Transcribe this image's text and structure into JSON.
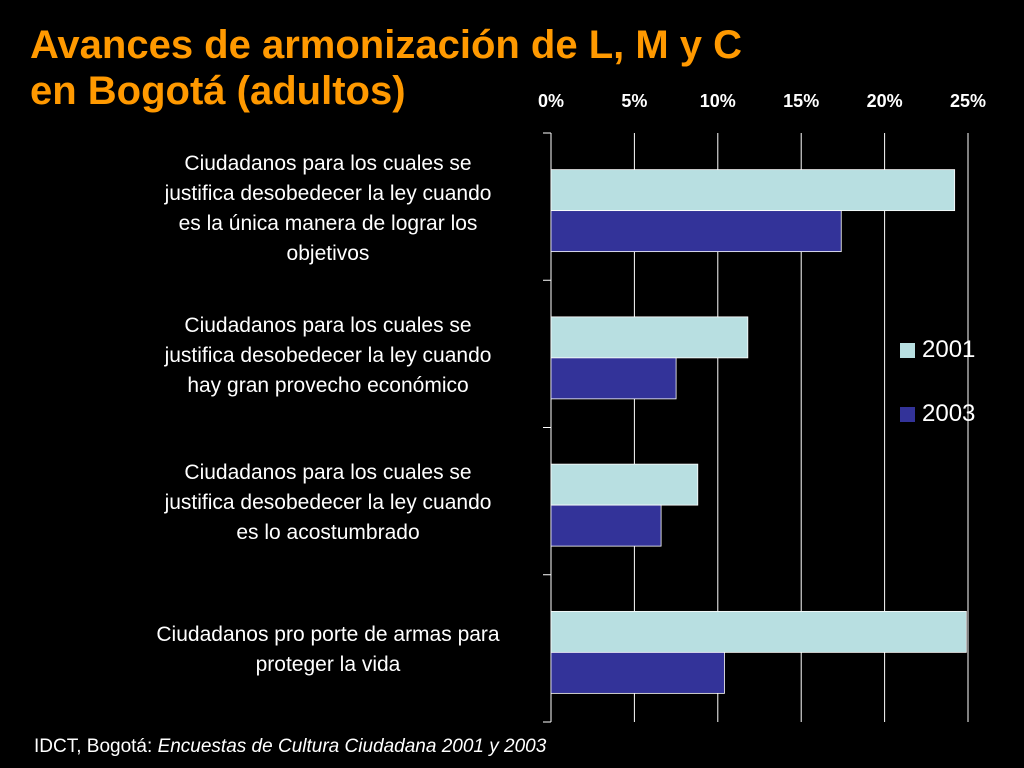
{
  "title": {
    "line1": "Avances de armonización de L, M y C",
    "line2": "en Bogotá (adultos)"
  },
  "colors": {
    "title": "#FF9900",
    "series_2001": "#B8DFE1",
    "series_2003": "#333399",
    "background": "#000000",
    "text": "#FFFFFF"
  },
  "source": {
    "prefix": "IDCT, Bogotá: ",
    "italic": "Encuestas de Cultura Ciudadana 2001 y 2003"
  },
  "chart_data": {
    "type": "bar",
    "orientation": "horizontal",
    "categories": [
      [
        "Ciudadanos para los cuales se",
        "justifica desobedecer la ley cuando",
        "es la única manera de lograr los",
        "objetivos"
      ],
      [
        "Ciudadanos para los cuales se",
        "justifica desobedecer la ley cuando",
        "hay gran provecho económico"
      ],
      [
        "Ciudadanos para los cuales se",
        "justifica desobedecer la ley cuando",
        "es lo acostumbrado"
      ],
      [
        "Ciudadanos pro porte de armas para",
        "proteger la vida"
      ]
    ],
    "series": [
      {
        "name": "2001",
        "values": [
          24.2,
          11.8,
          8.8,
          24.9
        ]
      },
      {
        "name": "2003",
        "values": [
          17.4,
          7.5,
          6.6,
          10.4
        ]
      }
    ],
    "x_ticks": [
      "0%",
      "5%",
      "10%",
      "15%",
      "20%",
      "25%"
    ],
    "xlim": [
      0,
      25
    ],
    "x_axis_position": "top",
    "grid": true,
    "legend_position": "right"
  }
}
